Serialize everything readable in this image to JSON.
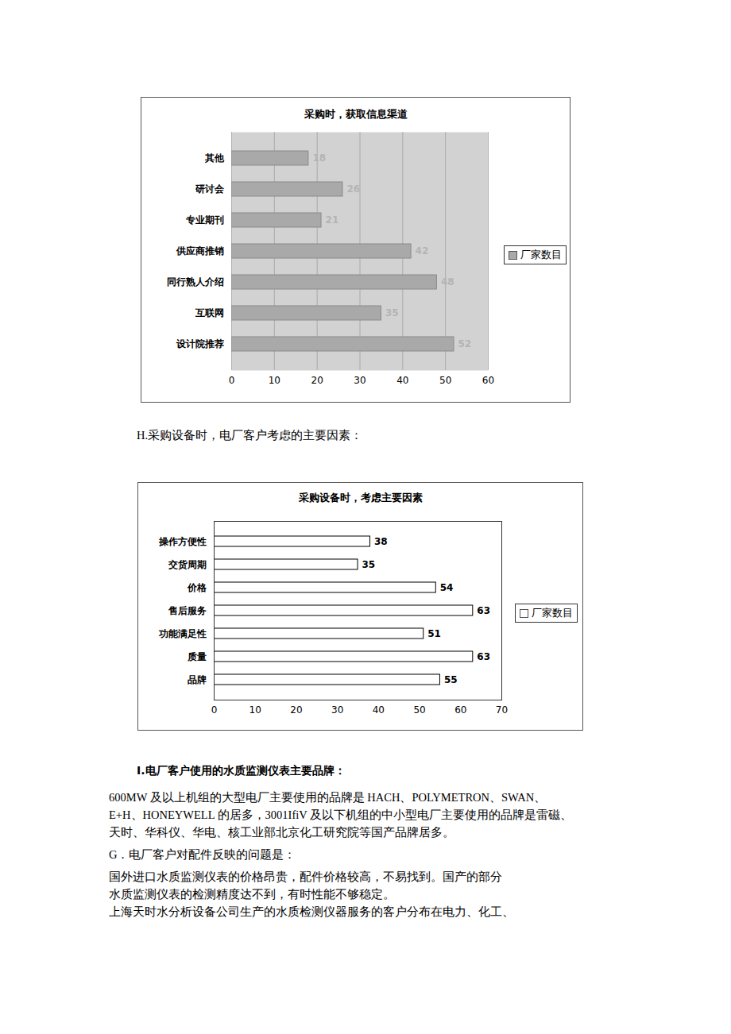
{
  "chart_data": [
    {
      "type": "bar",
      "title": "采购时，获取信息渠道",
      "orientation": "horizontal",
      "categories": [
        "其他",
        "研讨会",
        "专业期刊",
        "供应商推销",
        "同行熟人介绍",
        "互联网",
        "设计院推荐"
      ],
      "series": [
        {
          "name": "厂家数目",
          "color": "#a9a9a9",
          "values": [
            18,
            26,
            21,
            42,
            48,
            35,
            52
          ]
        }
      ],
      "xlim": [
        0,
        60
      ],
      "xticks": [
        0,
        10,
        20,
        30,
        40,
        50,
        60
      ],
      "grid": true,
      "data_labels": true,
      "legend": "right"
    },
    {
      "type": "bar",
      "title": "采购设备时，考虑主要因素",
      "orientation": "horizontal",
      "categories": [
        "操作方便性",
        "交货周期",
        "价格",
        "售后服务",
        "功能满足性",
        "质量",
        "品牌"
      ],
      "series": [
        {
          "name": "厂家数目",
          "color": "#ffffff",
          "values": [
            38,
            35,
            54,
            63,
            51,
            63,
            55
          ]
        }
      ],
      "xlim": [
        0,
        70
      ],
      "xticks": [
        0,
        10,
        20,
        30,
        40,
        50,
        60,
        70
      ],
      "grid": false,
      "data_labels": true,
      "legend": "right"
    }
  ],
  "text": {
    "heading_h": "H.采购设备时，电厂客户考虑的主要因素：",
    "heading_i": "I.电厂客户使用的水质监测仪表主要品牌：",
    "brands_lines": [
      "600MW 及以上机组的大型电厂主要使用的品牌是 HACH、POLYMETRON、SWAN、",
      "E+H、HONEYWELL 的居多，3001IfiV 及以下机组的中小型电厂主要使用的品牌是雷磁、",
      "天时、华科仪、华电、核工业部北京化工研究院等国产品牌居多。"
    ],
    "heading_g": "G．电厂客户对配件反映的问题是：",
    "parts_lines": [
      "国外进口水质监测仪表的价格昂贵，配件价格较高，不易找到。国产的部分",
      "水质监测仪表的检测精度达不到，有时性能不够稳定。"
    ],
    "final_line": "上海天时水分析设备公司生产的水质检测仪器服务的客户分布在电力、化工、"
  }
}
